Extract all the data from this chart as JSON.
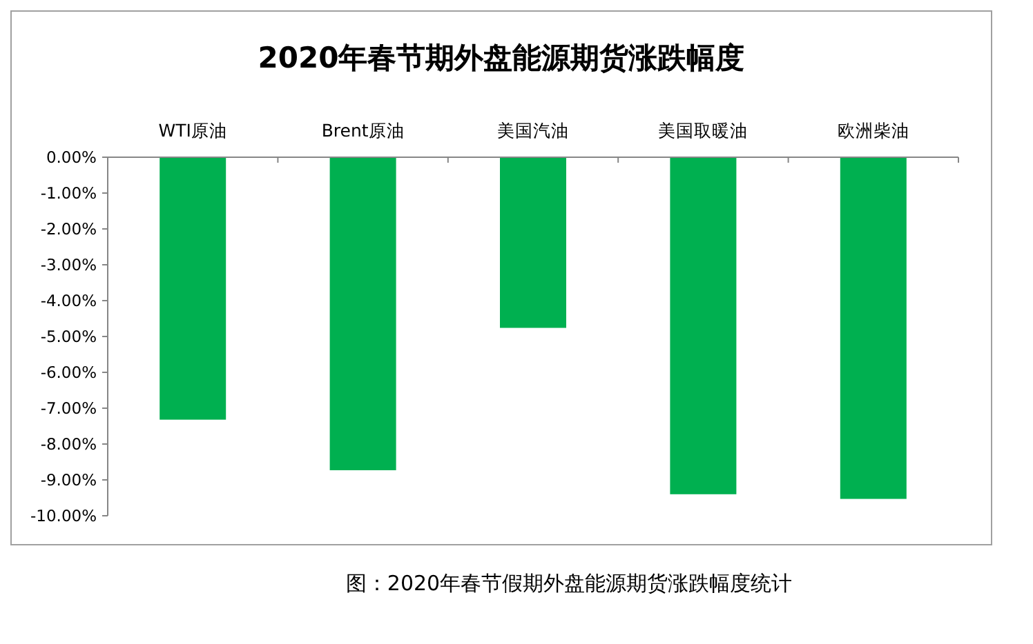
{
  "chart_data": {
    "type": "bar",
    "title": "2020年春节期外盘能源期货涨跌幅度",
    "categories": [
      "WTI原油",
      "Brent原油",
      "美国汽油",
      "美国取暖油",
      "欧洲柴油"
    ],
    "values": [
      -7.32,
      -8.73,
      -4.76,
      -9.4,
      -9.53
    ],
    "color": "#00b050",
    "ylim": [
      -10,
      0
    ],
    "yticks": [
      {
        "value": 0,
        "label": "0.00%"
      },
      {
        "value": -1,
        "label": "-1.00%"
      },
      {
        "value": -2,
        "label": "-2.00%"
      },
      {
        "value": -3,
        "label": "-3.00%"
      },
      {
        "value": -4,
        "label": "-4.00%"
      },
      {
        "value": -5,
        "label": "-5.00%"
      },
      {
        "value": -6,
        "label": "-6.00%"
      },
      {
        "value": -7,
        "label": "-7.00%"
      },
      {
        "value": -8,
        "label": "-8.00%"
      },
      {
        "value": -9,
        "label": "-9.00%"
      },
      {
        "value": -10,
        "label": "-10.00%"
      }
    ],
    "grid": false,
    "annotations": [
      "图：2020年春节假期外盘能源期货涨跌幅度统计"
    ]
  }
}
